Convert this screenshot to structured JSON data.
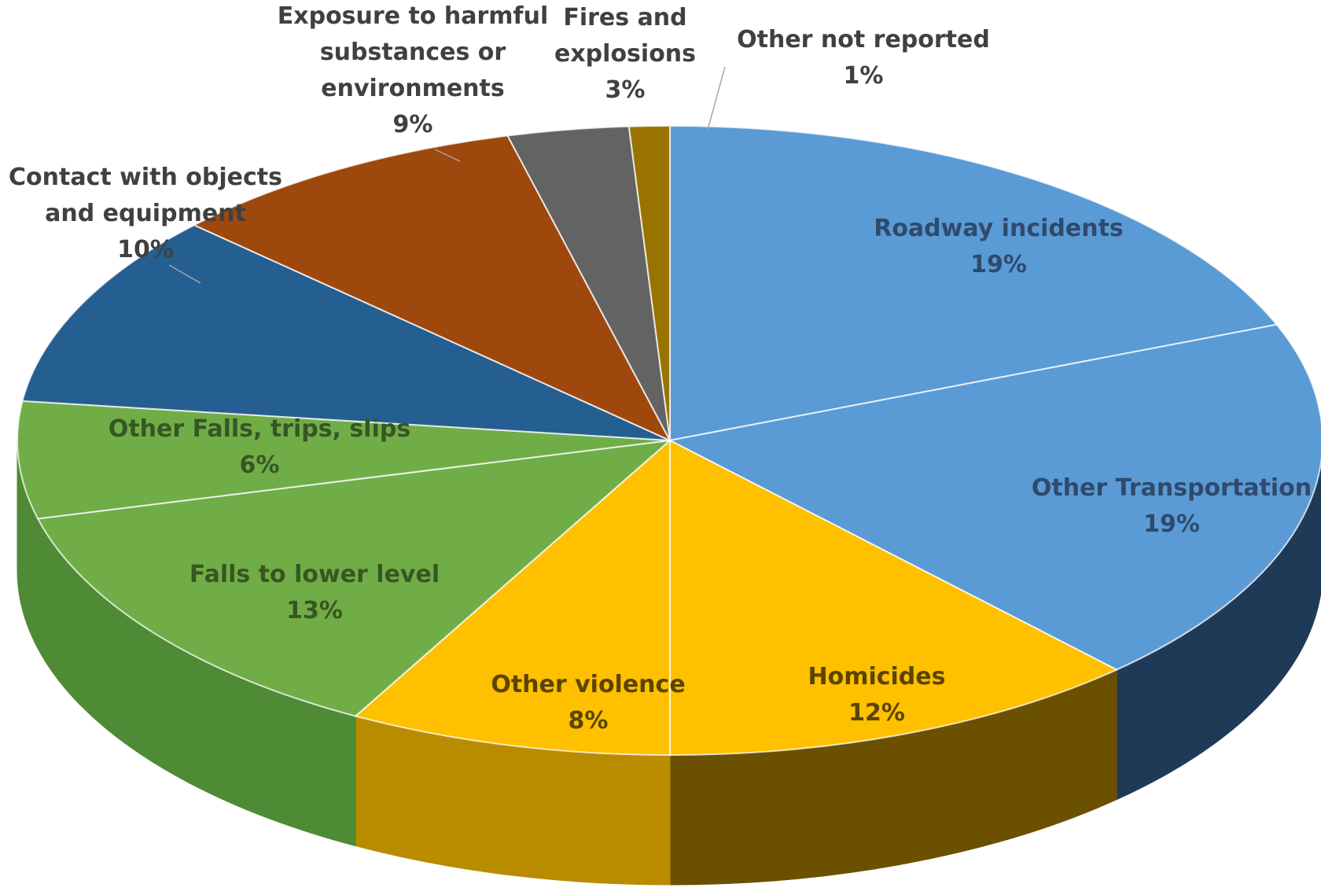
{
  "chart_data": {
    "type": "pie",
    "title": "",
    "slices": [
      {
        "label_lines": [
          "Roadway incidents"
        ],
        "percent_label": "19%",
        "value": 19,
        "color": "#5b9bd5",
        "side_color": "#1f3a57",
        "text_color": "#2e4a6e"
      },
      {
        "label_lines": [
          "Other Transportation"
        ],
        "percent_label": "19%",
        "value": 19,
        "color": "#5b9bd5",
        "side_color": "#1f3a57",
        "text_color": "#2e4a6e"
      },
      {
        "label_lines": [
          "Homicides"
        ],
        "percent_label": "12%",
        "value": 12,
        "color": "#ffc000",
        "side_color": "#6b5000",
        "text_color": "#5a4400"
      },
      {
        "label_lines": [
          "Other violence"
        ],
        "percent_label": "8%",
        "value": 8,
        "color": "#ffc000",
        "side_color": "#b98c00",
        "text_color": "#5a4400"
      },
      {
        "label_lines": [
          "Falls to lower level"
        ],
        "percent_label": "13%",
        "value": 13,
        "color": "#70ad47",
        "side_color": "#4f8a34",
        "text_color": "#375623"
      },
      {
        "label_lines": [
          "Other Falls, trips, slips"
        ],
        "percent_label": "6%",
        "value": 6,
        "color": "#70ad47",
        "side_color": "#4f8a34",
        "text_color": "#375623"
      },
      {
        "label_lines": [
          "Contact with objects",
          "and equipment"
        ],
        "percent_label": "10%",
        "value": 10,
        "color": "#255e91",
        "side_color": "#1a3f61",
        "text_color": "#404040"
      },
      {
        "label_lines": [
          "Exposure to harmful",
          "substances or",
          "environments"
        ],
        "percent_label": "9%",
        "value": 9,
        "color": "#9e480e",
        "side_color": "#6b300a",
        "text_color": "#404040"
      },
      {
        "label_lines": [
          "Fires and",
          "explosions"
        ],
        "percent_label": "3%",
        "value": 3,
        "color": "#636363",
        "side_color": "#404040",
        "text_color": "#404040"
      },
      {
        "label_lines": [
          "Other not reported"
        ],
        "percent_label": "1%",
        "value": 1,
        "color": "#997300",
        "side_color": "#6b5000",
        "text_color": "#404040"
      }
    ]
  }
}
